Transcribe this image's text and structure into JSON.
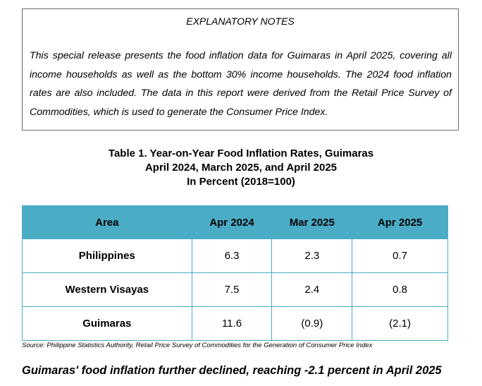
{
  "notes": {
    "title": "EXPLANATORY NOTES",
    "body": "This special release presents the food inflation data for Guimaras in April 2025, covering all income households as well as the bottom 30% income households. The 2024 food inflation rates are also included. The data in this report were derived from the Retail Price Survey of Commodities, which is used to generate the Consumer Price Index."
  },
  "table": {
    "title_line1": "Table 1. Year-on-Year Food Inflation Rates, Guimaras",
    "title_line2": "April 2024, March 2025, and April 2025",
    "title_line3": "In Percent (2018=100)",
    "headers": [
      "Area",
      "Apr 2024",
      "Mar 2025",
      "Apr 2025"
    ],
    "rows": [
      [
        "Philippines",
        "6.3",
        "2.3",
        "0.7"
      ],
      [
        "Western Visayas",
        "7.5",
        "2.4",
        "0.8"
      ],
      [
        "Guimaras",
        "11.6",
        "(0.9)",
        "(2.1)"
      ]
    ],
    "source": "Source: Philippine Statistics Authority, Retail Price Survey of Commodities for the Generation of Consumer Price Index"
  },
  "headline": "Guimaras' food inflation further declined, reaching -2.1 percent in April 2025",
  "colors": {
    "header_bg": "#4bacc6",
    "border": "#4bacc6"
  }
}
